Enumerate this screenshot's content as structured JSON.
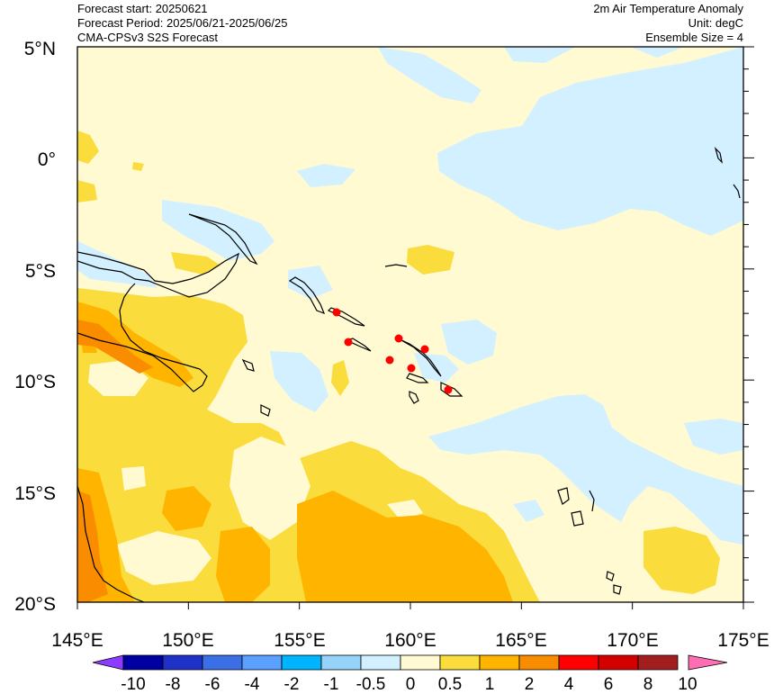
{
  "header": {
    "forecast_start": "Forecast start: 20250621",
    "forecast_period": "Forecast Period: 2025/06/21-2025/06/25",
    "model": "CMA-CPSv3 S2S Forecast",
    "variable": "2m Air Temperature Anomaly",
    "unit": "Unit: degC",
    "ensemble": "Ensemble Size = 4"
  },
  "map": {
    "lon_range": [
      145,
      175
    ],
    "lat_range": [
      -20,
      5
    ],
    "lon_ticks": [
      "145°E",
      "150°E",
      "155°E",
      "160°E",
      "165°E",
      "170°E",
      "175°E"
    ],
    "lat_ticks": [
      "5°N",
      "0°",
      "5°S",
      "10°S",
      "15°S",
      "20°S"
    ]
  },
  "colorbar": {
    "labels": [
      "-10",
      "-8",
      "-6",
      "-4",
      "-2",
      "-1",
      "-0.5",
      "0",
      "0.5",
      "1",
      "2",
      "4",
      "6",
      "8",
      "10"
    ],
    "colors": [
      "#0000a0",
      "#1e32c8",
      "#3c6ee6",
      "#5aa0ff",
      "#00b4ff",
      "#96d2fa",
      "#d2f0ff",
      "#fffad2",
      "#fadc3c",
      "#ffb400",
      "#fa8c00",
      "#ff0000",
      "#d20000",
      "#a01e1e"
    ],
    "low_end_color": "#8c3cff",
    "high_end_color": "#ff6eb4"
  },
  "palette": {
    "neg_light": "#d2f0ff",
    "pos_pale": "#fffad2",
    "pos_yellow": "#fadc3c",
    "pos_orange": "#ffb400",
    "pos_dark": "#fa8c00",
    "station_marker": "#ff0000"
  }
}
